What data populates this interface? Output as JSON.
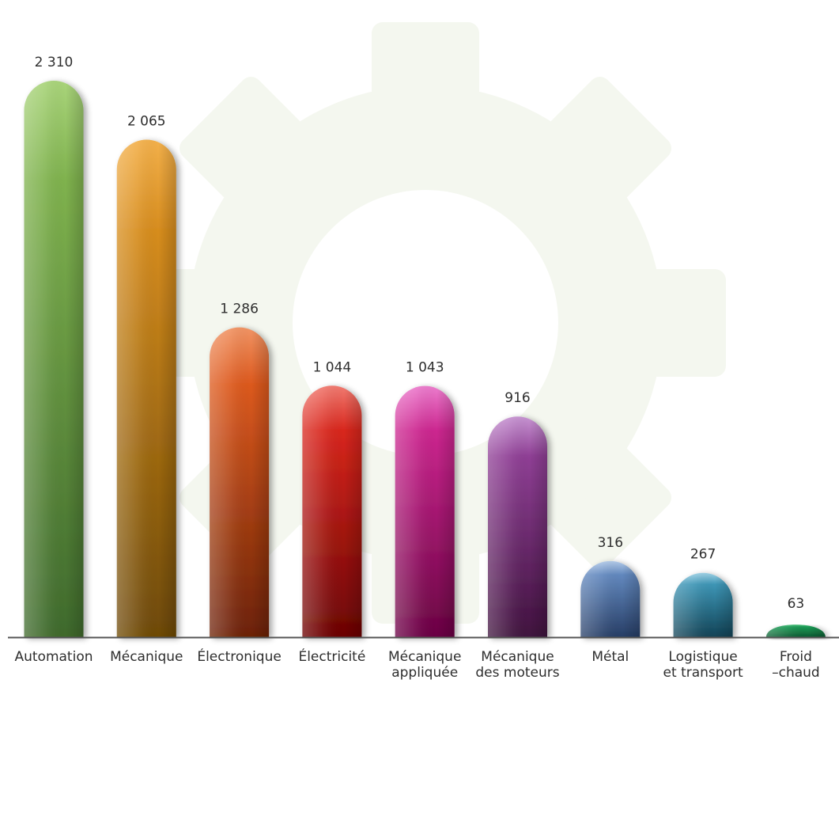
{
  "chart_data": {
    "type": "bar",
    "categories": [
      [
        "Automation"
      ],
      [
        "Mécanique"
      ],
      [
        "Électronique"
      ],
      [
        "Électricité"
      ],
      [
        "Mécanique",
        "appliquée"
      ],
      [
        "Mécanique",
        "des moteurs"
      ],
      [
        "Métal"
      ],
      [
        "Logistique",
        "et transport"
      ],
      [
        "Froid",
        "–chaud"
      ]
    ],
    "values": [
      2310,
      2065,
      1286,
      1044,
      1043,
      916,
      316,
      267,
      63
    ],
    "value_labels": [
      "2 310",
      "2 065",
      "1 286",
      "1 044",
      "1 043",
      "916",
      "316",
      "267",
      "63"
    ],
    "ylim": [
      0,
      2310
    ],
    "grid": false,
    "legend": "none",
    "colors": [
      [
        "#a9d47a",
        "#7fb24e",
        "#3f6a2c"
      ],
      [
        "#f3b04a",
        "#d78d1f",
        "#6e4a06"
      ],
      [
        "#f19464",
        "#dd5a1f",
        "#6c2206"
      ],
      [
        "#f17a70",
        "#d8261c",
        "#6b0404"
      ],
      [
        "#ec7ccd",
        "#cc268f",
        "#6a0343"
      ],
      [
        "#c794d2",
        "#8f3f95",
        "#40123e"
      ],
      [
        "#b3cbe9",
        "#6288be",
        "#273e66"
      ],
      [
        "#9fd2e6",
        "#3d95b5",
        "#124356"
      ],
      [
        "#4fc67f",
        "#1b9a55",
        "#0d5a31"
      ]
    ],
    "background_icon": "gear-icon"
  }
}
